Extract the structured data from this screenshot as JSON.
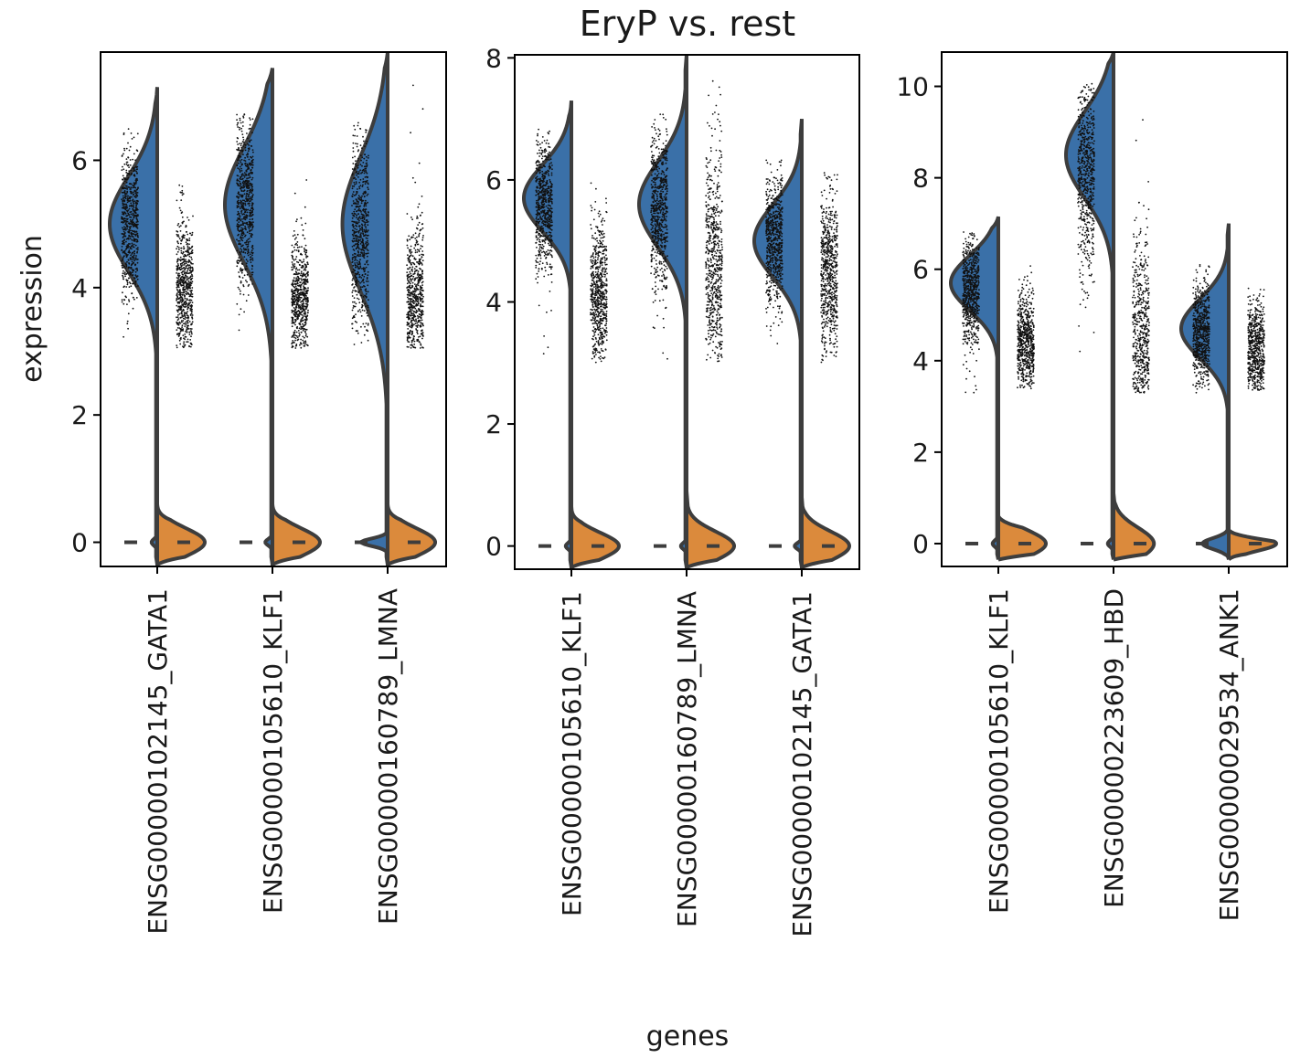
{
  "chart_data": {
    "type": "violin",
    "title": "EryP vs. rest",
    "xlabel": "genes",
    "ylabel": "expression",
    "colors": {
      "EryP": "#3a70a8",
      "rest": "#db8a3c",
      "outline": "#3d3d3d",
      "points": "#111111"
    },
    "panels": [
      {
        "ylim": [
          -0.38,
          7.7
        ],
        "yticks": [
          "0",
          "2",
          "4",
          "6"
        ],
        "genes": [
          {
            "label": "ENSG00000102145_GATA1",
            "left": {
              "max": 7.15,
              "modes": [
                [
                  5.0,
                  1.0,
                  0.75
                ]
              ],
              "zero": 0.12,
              "zw": 0.05,
              "pts": [
                3.1,
                6.55,
                5.0,
                0.6
              ]
            },
            "right": {
              "max": 0.6,
              "modes": [],
              "zero": 1.0,
              "zw": 0.22,
              "pts": [
                3.05,
                6.05,
                4.0,
                0.5
              ]
            }
          },
          {
            "label": "ENSG00000105610_KLF1",
            "left": {
              "max": 7.45,
              "modes": [
                [
                  5.3,
                  1.0,
                  0.9
                ]
              ],
              "zero": 0.15,
              "zw": 0.05,
              "pts": [
                3.15,
                6.75,
                5.3,
                0.65
              ]
            },
            "right": {
              "max": 0.6,
              "modes": [],
              "zero": 1.0,
              "zw": 0.22,
              "pts": [
                3.05,
                5.7,
                3.8,
                0.45
              ]
            }
          },
          {
            "label": "ENSG00000160789_LMNA",
            "left": {
              "max": 7.7,
              "modes": [
                [
                  5.0,
                  0.95,
                  1.05
                ]
              ],
              "zero": 0.55,
              "zw": 0.06,
              "pts": [
                3.1,
                6.6,
                4.9,
                0.8
              ]
            },
            "right": {
              "max": 0.6,
              "modes": [],
              "zero": 1.0,
              "zw": 0.22,
              "pts": [
                3.05,
                7.35,
                3.8,
                0.6
              ]
            }
          }
        ]
      },
      {
        "ylim": [
          -0.38,
          8.05
        ],
        "yticks": [
          "0",
          "2",
          "4",
          "6",
          "8"
        ],
        "genes": [
          {
            "label": "ENSG00000105610_KLF1",
            "left": {
              "max": 7.3,
              "modes": [
                [
                  5.7,
                  1.0,
                  0.55
                ]
              ],
              "zero": 0.12,
              "zw": 0.05,
              "pts": [
                3.15,
                6.85,
                5.6,
                0.55
              ]
            },
            "right": {
              "max": 0.65,
              "modes": [],
              "zero": 1.0,
              "zw": 0.22,
              "pts": [
                3.0,
                6.25,
                4.1,
                0.6
              ]
            }
          },
          {
            "label": "ENSG00000160789_LMNA",
            "left": {
              "max": 8.05,
              "modes": [
                [
                  5.6,
                  1.0,
                  0.7
                ]
              ],
              "zero": 0.12,
              "zw": 0.05,
              "pts": [
                3.05,
                7.1,
                5.5,
                0.65
              ]
            },
            "right": {
              "max": 0.9,
              "modes": [
                [
                  4.4,
                  0.08,
                  1.2
                ]
              ],
              "zero": 1.0,
              "zw": 0.24,
              "pts": [
                3.0,
                7.65,
                4.6,
                1.05
              ]
            }
          },
          {
            "label": "ENSG00000102145_GATA1",
            "left": {
              "max": 7.0,
              "modes": [
                [
                  5.0,
                  1.0,
                  0.6
                ]
              ],
              "zero": 0.15,
              "zw": 0.05,
              "pts": [
                3.3,
                6.35,
                5.0,
                0.55
              ]
            },
            "right": {
              "max": 0.8,
              "modes": [
                [
                  4.6,
                  0.1,
                  0.9
                ]
              ],
              "zero": 1.0,
              "zw": 0.24,
              "pts": [
                3.0,
                6.3,
                4.5,
                0.65
              ]
            }
          }
        ]
      },
      {
        "ylim": [
          -0.5,
          10.75
        ],
        "yticks": [
          "0",
          "2",
          "4",
          "6",
          "8",
          "10"
        ],
        "genes": [
          {
            "label": "ENSG00000105610_KLF1",
            "left": {
              "max": 7.15,
              "modes": [
                [
                  5.7,
                  1.0,
                  0.6
                ]
              ],
              "zero": 0.12,
              "zw": 0.07,
              "pts": [
                3.3,
                6.85,
                5.5,
                0.6
              ]
            },
            "right": {
              "max": 0.6,
              "modes": [
                [
                  3.9,
                  0.08,
                  0.4
                ]
              ],
              "zero": 1.0,
              "zw": 0.3,
              "pts": [
                3.35,
                6.25,
                4.4,
                0.55
              ]
            }
          },
          {
            "label": "ENSG00000223609_HBD",
            "left": {
              "max": 10.75,
              "modes": [
                [
                  8.5,
                  1.0,
                  0.95
                ]
              ],
              "zero": 0.12,
              "zw": 0.07,
              "pts": [
                3.4,
                10.1,
                8.2,
                1.15
              ]
            },
            "right": {
              "max": 1.1,
              "modes": [
                [
                  4.0,
                  0.62,
                  0.5
                ]
              ],
              "zero": 0.85,
              "zw": 0.35,
              "pts": [
                3.3,
                10.2,
                4.3,
                1.2
              ]
            }
          },
          {
            "label": "ENSG00000029534_ANK1",
            "left": {
              "max": 7.0,
              "modes": [
                [
                  4.7,
                  1.0,
                  0.65
                ]
              ],
              "zero": 0.55,
              "zw": 0.12,
              "pts": [
                3.3,
                6.2,
                4.6,
                0.6
              ]
            },
            "right": {
              "max": 0.3,
              "modes": [],
              "zero": 1.0,
              "zw": 0.16,
              "pts": [
                3.35,
                5.7,
                4.2,
                0.55
              ]
            }
          }
        ]
      }
    ]
  }
}
